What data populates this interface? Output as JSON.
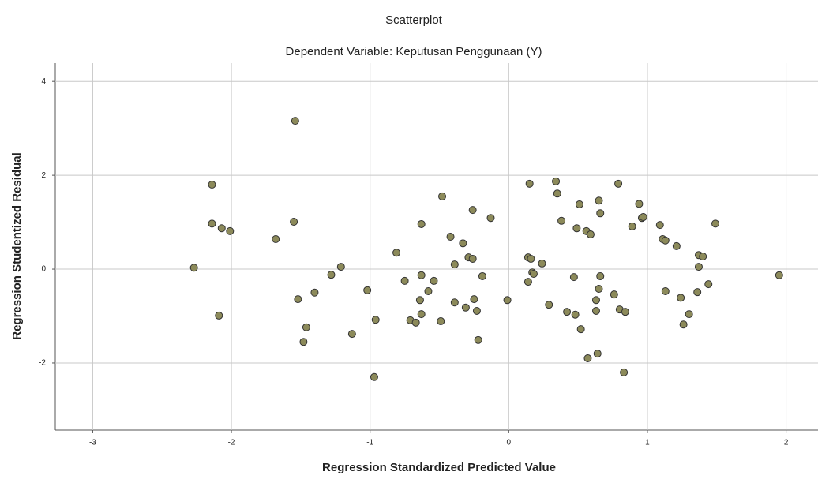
{
  "chart_data": {
    "type": "scatter",
    "title": "Scatterplot",
    "subtitle": "Dependent Variable: Keputusan Penggunaan (Y)",
    "x_label": "Regression Standardized Predicted Value",
    "y_label": "Regression Studentized Residual",
    "x": [
      -2.27,
      -2.14,
      -2.14,
      -2.07,
      -2.01,
      -2.09,
      -1.68,
      -1.54,
      -1.55,
      -1.52,
      -1.4,
      -1.46,
      -1.48,
      -1.28,
      -1.21,
      -1.13,
      -1.02,
      -0.96,
      -0.97,
      -0.81,
      -0.75,
      -0.71,
      -0.67,
      -0.63,
      -0.63,
      -0.64,
      -0.63,
      -0.58,
      -0.54,
      -0.48,
      -0.49,
      -0.42,
      -0.39,
      -0.39,
      -0.33,
      -0.31,
      -0.29,
      -0.26,
      -0.26,
      -0.25,
      -0.23,
      -0.22,
      -0.19,
      -0.13,
      -0.01,
      0.14,
      0.14,
      0.15,
      0.16,
      0.17,
      0.18,
      0.24,
      0.29,
      0.34,
      0.35,
      0.38,
      0.42,
      0.47,
      0.48,
      0.49,
      0.51,
      0.52,
      0.56,
      0.59,
      0.57,
      0.63,
      0.63,
      0.64,
      0.65,
      0.66,
      0.66,
      0.65,
      0.76,
      0.79,
      0.8,
      0.84,
      0.83,
      0.89,
      0.94,
      0.96,
      0.97,
      1.09,
      1.11,
      1.13,
      1.13,
      1.21,
      1.24,
      1.26,
      1.3,
      1.36,
      1.37,
      1.37,
      1.4,
      1.44,
      1.49,
      1.95
    ],
    "values": [
      0.03,
      1.8,
      0.97,
      0.87,
      0.81,
      -0.99,
      0.64,
      3.16,
      1.01,
      -0.64,
      -0.5,
      -1.24,
      -1.55,
      -0.12,
      0.05,
      -1.38,
      -0.45,
      -1.08,
      -2.3,
      0.35,
      -0.25,
      -1.09,
      -1.14,
      0.96,
      -0.13,
      -0.66,
      -0.96,
      -0.47,
      -0.25,
      1.55,
      -1.11,
      0.69,
      0.1,
      -0.71,
      0.55,
      -0.82,
      0.25,
      1.26,
      0.22,
      -0.64,
      -0.89,
      -1.51,
      -0.15,
      1.09,
      -0.66,
      0.25,
      -0.27,
      1.82,
      0.22,
      -0.07,
      -0.1,
      0.12,
      -0.76,
      1.87,
      1.61,
      1.03,
      -0.91,
      -0.17,
      -0.97,
      0.87,
      1.38,
      -1.28,
      0.81,
      0.74,
      -1.9,
      -0.66,
      -0.89,
      -1.8,
      1.46,
      1.19,
      -0.15,
      -0.42,
      -0.54,
      1.82,
      -0.86,
      -0.91,
      -2.2,
      0.91,
      1.39,
      1.09,
      1.11,
      0.94,
      0.64,
      0.61,
      -0.47,
      0.49,
      -0.61,
      -1.18,
      -0.96,
      -0.49,
      0.05,
      0.3,
      0.27,
      -0.32,
      0.97,
      -0.13
    ],
    "color": "#8c8a5a",
    "xlim": [
      -3.27,
      2.23
    ],
    "ylim": [
      -3.43,
      4.39
    ],
    "xticks": [
      -3,
      -2,
      -1,
      0,
      1,
      2
    ],
    "yticks": [
      -2,
      0,
      2,
      4
    ],
    "grid": true
  }
}
